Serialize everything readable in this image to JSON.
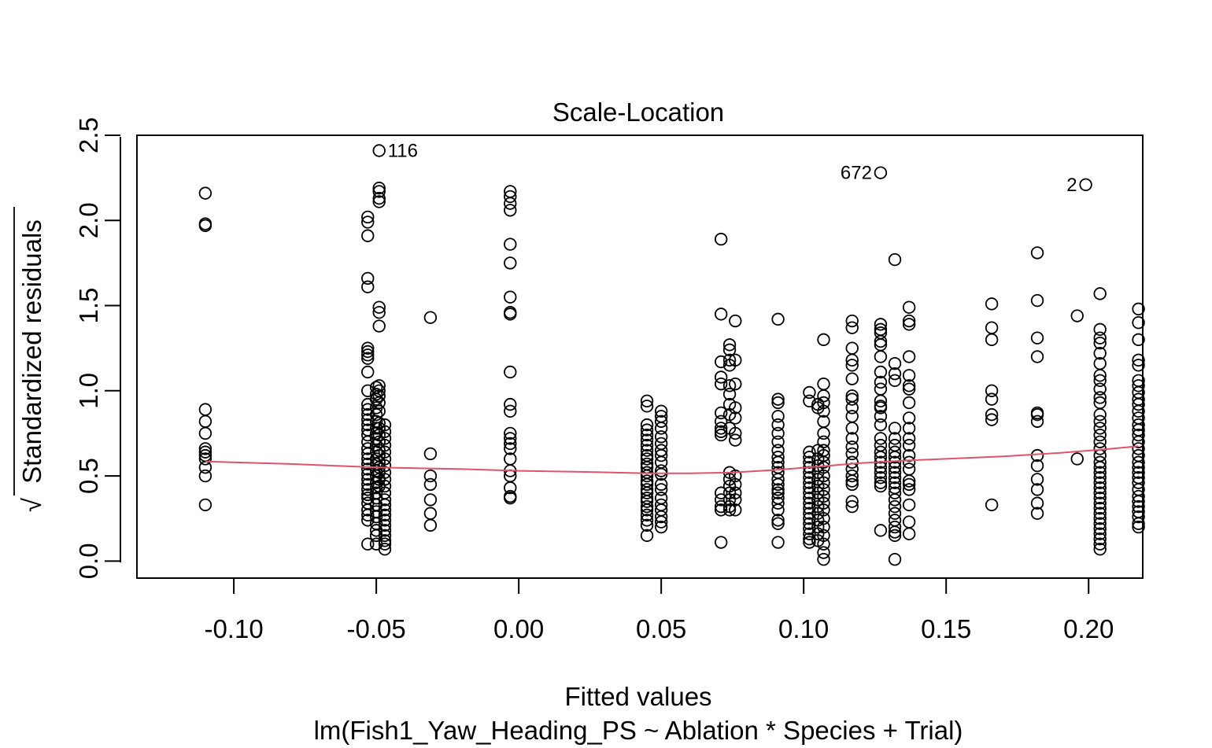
{
  "chart_data": {
    "type": "scatter",
    "title": "Scale-Location",
    "xlabel": "Fitted values",
    "subtitle": "lm(Fish1_Yaw_Heading_PS ~ Ablation * Species + Trial)",
    "ylabel_radical": "√",
    "ylabel": "Standardized residuals",
    "xlim": [
      -0.134,
      0.219
    ],
    "ylim": [
      -0.1,
      2.5
    ],
    "x_ticks": [
      -0.1,
      -0.05,
      0.0,
      0.05,
      0.1,
      0.15,
      0.2
    ],
    "x_tick_labels": [
      "-0.10",
      "-0.05",
      "0.00",
      "0.05",
      "0.10",
      "0.15",
      "0.20"
    ],
    "y_ticks": [
      0.0,
      0.5,
      1.0,
      1.5,
      2.0,
      2.5
    ],
    "y_tick_labels": [
      "0.0",
      "0.5",
      "1.0",
      "1.5",
      "2.0",
      "2.5"
    ],
    "smoother_color": "#DF536B",
    "smoother": {
      "x": [
        -0.11,
        -0.08,
        -0.05,
        -0.02,
        0.0,
        0.02,
        0.045,
        0.06,
        0.075,
        0.09,
        0.105,
        0.12,
        0.135,
        0.15,
        0.17,
        0.19,
        0.205,
        0.2175
      ],
      "y": [
        0.585,
        0.57,
        0.55,
        0.54,
        0.53,
        0.525,
        0.515,
        0.515,
        0.52,
        0.535,
        0.555,
        0.575,
        0.59,
        0.6,
        0.615,
        0.635,
        0.655,
        0.675
      ]
    },
    "labeled_points": [
      {
        "x": -0.049,
        "y": 2.41,
        "label": "116",
        "side": "right"
      },
      {
        "x": 0.127,
        "y": 2.28,
        "label": "672",
        "side": "left"
      },
      {
        "x": 0.199,
        "y": 2.21,
        "label": "2",
        "side": "left"
      }
    ],
    "groups": [
      {
        "x": -0.11,
        "y": [
          2.16,
          1.98,
          1.97,
          0.89,
          0.82,
          0.75,
          0.66,
          0.64,
          0.62,
          0.6,
          0.55,
          0.5,
          0.33
        ]
      },
      {
        "x": -0.053,
        "y": [
          2.02,
          1.99,
          1.91,
          1.66,
          1.61,
          1.25,
          1.23,
          1.21,
          1.19,
          1.11,
          1.0,
          0.92,
          0.89,
          0.86,
          0.83,
          0.8,
          0.77,
          0.74,
          0.7,
          0.66,
          0.63,
          0.6,
          0.57,
          0.54,
          0.51,
          0.48,
          0.45,
          0.42,
          0.39,
          0.37,
          0.34,
          0.3,
          0.27,
          0.24,
          0.1
        ]
      },
      {
        "x": -0.05,
        "y": [
          1.02,
          0.98,
          0.95,
          0.9,
          0.86,
          0.82,
          0.78,
          0.75,
          0.72,
          0.68,
          0.64,
          0.6,
          0.57,
          0.53,
          0.5,
          0.46,
          0.43,
          0.4,
          0.37,
          0.33,
          0.29,
          0.26,
          0.22,
          0.18,
          0.15,
          0.1
        ]
      },
      {
        "x": -0.049,
        "y": [
          2.19,
          2.17,
          2.13,
          2.11,
          1.49,
          1.46,
          1.38,
          1.03,
          1.0,
          0.97,
          0.93,
          0.88,
          0.81,
          0.78,
          0.74,
          0.7,
          0.65,
          0.62,
          0.58,
          0.55,
          0.52,
          0.48,
          0.44
        ]
      },
      {
        "x": -0.047,
        "y": [
          0.8,
          0.76,
          0.72,
          0.68,
          0.64,
          0.6,
          0.56,
          0.52,
          0.48,
          0.44,
          0.4,
          0.36,
          0.33,
          0.3,
          0.27,
          0.24,
          0.21,
          0.18,
          0.15,
          0.12,
          0.1,
          0.07
        ]
      },
      {
        "x": -0.031,
        "y": [
          1.43,
          0.63,
          0.5,
          0.45,
          0.36,
          0.28,
          0.21
        ]
      },
      {
        "x": -0.003,
        "y": [
          2.17,
          2.14,
          2.1,
          2.06,
          1.86,
          1.75,
          1.55,
          1.46,
          1.45,
          1.11,
          0.92,
          0.88,
          0.75,
          0.72,
          0.69,
          0.66,
          0.6,
          0.53,
          0.5,
          0.43,
          0.38,
          0.37
        ]
      },
      {
        "x": 0.045,
        "y": [
          0.94,
          0.91,
          0.8,
          0.77,
          0.74,
          0.71,
          0.68,
          0.65,
          0.62,
          0.6,
          0.57,
          0.55,
          0.52,
          0.5,
          0.47,
          0.45,
          0.42,
          0.4,
          0.37,
          0.35,
          0.32,
          0.3,
          0.27,
          0.24,
          0.21,
          0.15
        ]
      },
      {
        "x": 0.05,
        "y": [
          0.88,
          0.85,
          0.82,
          0.78,
          0.73,
          0.69,
          0.65,
          0.62,
          0.58,
          0.53,
          0.51,
          0.45,
          0.42,
          0.37,
          0.33,
          0.3,
          0.26,
          0.23,
          0.2
        ]
      },
      {
        "x": 0.071,
        "y": [
          1.89,
          1.45,
          1.17,
          1.08,
          1.04,
          0.87,
          0.82,
          0.78,
          0.76,
          0.74,
          0.4,
          0.36,
          0.32,
          0.3,
          0.11
        ]
      },
      {
        "x": 0.074,
        "y": [
          1.27,
          1.24,
          1.18,
          1.15,
          1.03,
          0.98,
          0.92,
          0.86,
          0.78,
          0.52,
          0.48,
          0.44,
          0.4,
          0.36,
          0.32,
          0.3
        ]
      },
      {
        "x": 0.076,
        "y": [
          1.41,
          1.18,
          1.04,
          0.9,
          0.84,
          0.75,
          0.71,
          0.5,
          0.45,
          0.4,
          0.36,
          0.3
        ]
      },
      {
        "x": 0.091,
        "y": [
          1.42,
          0.95,
          0.93,
          0.85,
          0.8,
          0.75,
          0.7,
          0.65,
          0.61,
          0.58,
          0.55,
          0.52,
          0.48,
          0.45,
          0.42,
          0.4,
          0.37,
          0.34,
          0.3,
          0.24,
          0.22,
          0.11
        ]
      },
      {
        "x": 0.102,
        "y": [
          0.99,
          0.94,
          0.64,
          0.61,
          0.58,
          0.55,
          0.52,
          0.49,
          0.46,
          0.43,
          0.4,
          0.37,
          0.34,
          0.31,
          0.28,
          0.25,
          0.22,
          0.19,
          0.16,
          0.13,
          0.11
        ]
      },
      {
        "x": 0.105,
        "y": [
          0.92,
          0.9,
          0.65,
          0.6,
          0.56,
          0.52,
          0.48,
          0.44,
          0.4,
          0.36,
          0.32,
          0.28,
          0.24,
          0.2,
          0.16,
          0.12
        ]
      },
      {
        "x": 0.107,
        "y": [
          1.3,
          1.04,
          0.97,
          0.93,
          0.88,
          0.82,
          0.75,
          0.7,
          0.65,
          0.62,
          0.58,
          0.55,
          0.5,
          0.46,
          0.42,
          0.38,
          0.34,
          0.3,
          0.25,
          0.2,
          0.15,
          0.1,
          0.05,
          0.01
        ]
      },
      {
        "x": 0.117,
        "y": [
          1.41,
          1.37,
          1.25,
          1.18,
          1.15,
          1.07,
          0.97,
          0.95,
          0.9,
          0.85,
          0.78,
          0.72,
          0.67,
          0.63,
          0.58,
          0.54,
          0.5,
          0.47,
          0.45,
          0.35,
          0.32
        ]
      },
      {
        "x": 0.127,
        "y": [
          1.39,
          1.36,
          1.34,
          1.29,
          1.27,
          1.2,
          1.11,
          1.05,
          1.01,
          0.94,
          0.91,
          0.9,
          0.85,
          0.8,
          0.72,
          0.68,
          0.64,
          0.61,
          0.58,
          0.55,
          0.52,
          0.49,
          0.46,
          0.44,
          0.18
        ]
      },
      {
        "x": 0.132,
        "y": [
          1.77,
          1.16,
          1.1,
          1.06,
          0.78,
          0.72,
          0.68,
          0.64,
          0.61,
          0.58,
          0.55,
          0.52,
          0.49,
          0.46,
          0.43,
          0.4,
          0.36,
          0.32,
          0.28,
          0.24,
          0.2,
          0.17,
          0.15,
          0.01
        ]
      },
      {
        "x": 0.137,
        "y": [
          1.49,
          1.41,
          1.39,
          1.2,
          1.09,
          1.03,
          1.01,
          0.93,
          0.84,
          0.78,
          0.72,
          0.68,
          0.62,
          0.58,
          0.54,
          0.47,
          0.45,
          0.42,
          0.33,
          0.23,
          0.16
        ]
      },
      {
        "x": 0.166,
        "y": [
          1.51,
          1.37,
          1.3,
          1.0,
          0.95,
          0.86,
          0.83,
          0.33
        ]
      },
      {
        "x": 0.182,
        "y": [
          1.81,
          1.53,
          1.31,
          1.2,
          0.87,
          0.86,
          0.82,
          0.62,
          0.56,
          0.48,
          0.42,
          0.34,
          0.28
        ]
      },
      {
        "x": 0.196,
        "y": [
          1.44,
          0.6
        ]
      },
      {
        "x": 0.204,
        "y": [
          1.57,
          1.36,
          1.31,
          1.28,
          1.22,
          1.16,
          1.09,
          1.06,
          1.01,
          0.96,
          0.93,
          0.86,
          0.82,
          0.78,
          0.74,
          0.7,
          0.66,
          0.62,
          0.58,
          0.55,
          0.52,
          0.49,
          0.46,
          0.43,
          0.4,
          0.37,
          0.34,
          0.31,
          0.28,
          0.25,
          0.22,
          0.19,
          0.16,
          0.13,
          0.1,
          0.07
        ]
      },
      {
        "x": 0.2175,
        "y": [
          1.48,
          1.4,
          1.3,
          1.18,
          1.15,
          1.06,
          1.03,
          0.99,
          0.95,
          0.92,
          0.88,
          0.84,
          0.8,
          0.77,
          0.74,
          0.7,
          0.66,
          0.62,
          0.58,
          0.55,
          0.52,
          0.49,
          0.46,
          0.42,
          0.38,
          0.35,
          0.32,
          0.29,
          0.26,
          0.22,
          0.2
        ]
      }
    ]
  }
}
